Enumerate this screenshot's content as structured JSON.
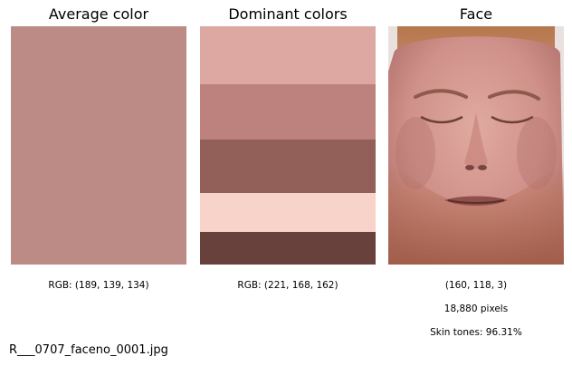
{
  "panels": {
    "average": {
      "title": "Average color",
      "caption": "RGB: (189, 139, 134)",
      "color": "#bd8b86"
    },
    "dominant": {
      "title": "Dominant colors",
      "caption": "RGB: (221, 168, 162)",
      "colors": [
        "#dda8a2",
        "#bd827e",
        "#925f59",
        "#f8d3c9",
        "#68413c"
      ],
      "weights": [
        0.245,
        0.23,
        0.225,
        0.165,
        0.135
      ]
    },
    "face": {
      "title": "Face",
      "dimensions": "(160, 118, 3)",
      "pixels": "18,880 pixels",
      "skin_tones": "Skin tones: 96.31%"
    }
  },
  "filename": "R___0707_faceno_0001.jpg"
}
